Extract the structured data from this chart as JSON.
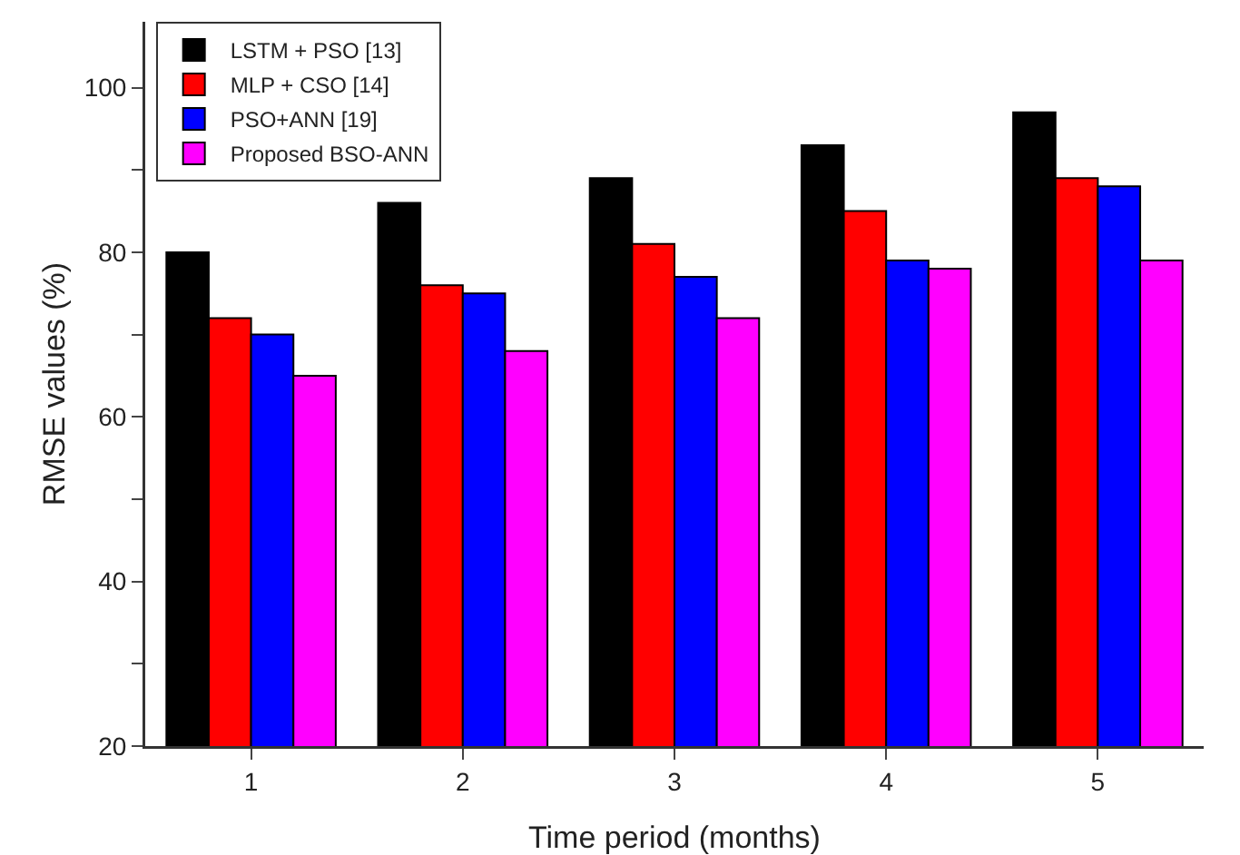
{
  "chart_data": {
    "type": "bar",
    "xlabel": "Time period (months)",
    "ylabel": "RMSE values (%)",
    "categories": [
      "1",
      "2",
      "3",
      "4",
      "5"
    ],
    "series": [
      {
        "name": "LSTM + PSO [13]",
        "color": "#000000",
        "values": [
          80,
          86,
          89,
          93,
          97
        ]
      },
      {
        "name": "MLP + CSO [14]",
        "color": "#ff0000",
        "values": [
          72,
          76,
          81,
          85,
          89
        ]
      },
      {
        "name": "PSO+ANN [19]",
        "color": "#0000ff",
        "values": [
          70,
          75,
          77,
          79,
          88
        ]
      },
      {
        "name": "Proposed BSO-ANN",
        "color": "#ff00ff",
        "values": [
          65,
          68,
          72,
          78,
          79
        ]
      }
    ],
    "ylim": [
      20,
      108
    ],
    "yticks": [
      20,
      {
        "value": 30,
        "label": null
      },
      40,
      {
        "value": 50,
        "label": null
      },
      60,
      {
        "value": 70,
        "label": null
      },
      80,
      {
        "value": 90,
        "label": null
      },
      100
    ],
    "grid": false,
    "legend": "top left"
  }
}
